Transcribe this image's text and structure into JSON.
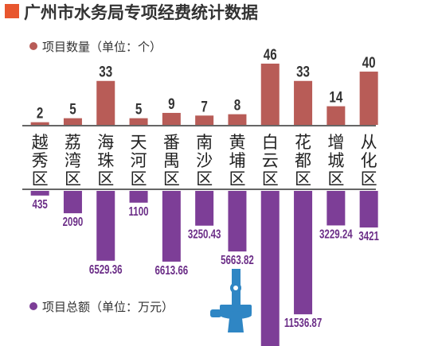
{
  "chart_data": {
    "type": "bar",
    "title": "广州市水务局专项经费统计数据",
    "categories": [
      [
        "越",
        "秀",
        "区"
      ],
      [
        "荔",
        "湾",
        "区"
      ],
      [
        "海",
        "珠",
        "区"
      ],
      [
        "天",
        "河",
        "区"
      ],
      [
        "番",
        "禺",
        "区"
      ],
      [
        "南",
        "沙",
        "区"
      ],
      [
        "黄",
        "埔",
        "区"
      ],
      [
        "白",
        "云",
        "区"
      ],
      [
        "花",
        "都",
        "区"
      ],
      [
        "增",
        "城",
        "区"
      ],
      [
        "从",
        "化",
        "区"
      ]
    ],
    "series": [
      {
        "name": "项目数量（单位：个）",
        "values": [
          2,
          5,
          33,
          5,
          9,
          7,
          8,
          46,
          33,
          14,
          40
        ],
        "labels": [
          "2",
          "5",
          "33",
          "5",
          "9",
          "7",
          "8",
          "46",
          "33",
          "14",
          "40"
        ]
      },
      {
        "name": "项目总额（单位：万元）",
        "values": [
          435,
          2090,
          6529.36,
          1100,
          6613.66,
          3250.43,
          5663.82,
          14500,
          11536.87,
          3229.24,
          3421
        ],
        "labels": [
          "435",
          "2090",
          "6529.36",
          "1100",
          "6613.66",
          "3250.43",
          "5663.82",
          "",
          "11536.87",
          "3229.24",
          "3421"
        ]
      }
    ],
    "colors": {
      "title_square": "#e8562e",
      "count_bar": "#b85c57",
      "amount_bar": "#7d3e97",
      "count_text": "#333333",
      "amount_text": "#6b2d87",
      "axis": "#333333"
    }
  }
}
